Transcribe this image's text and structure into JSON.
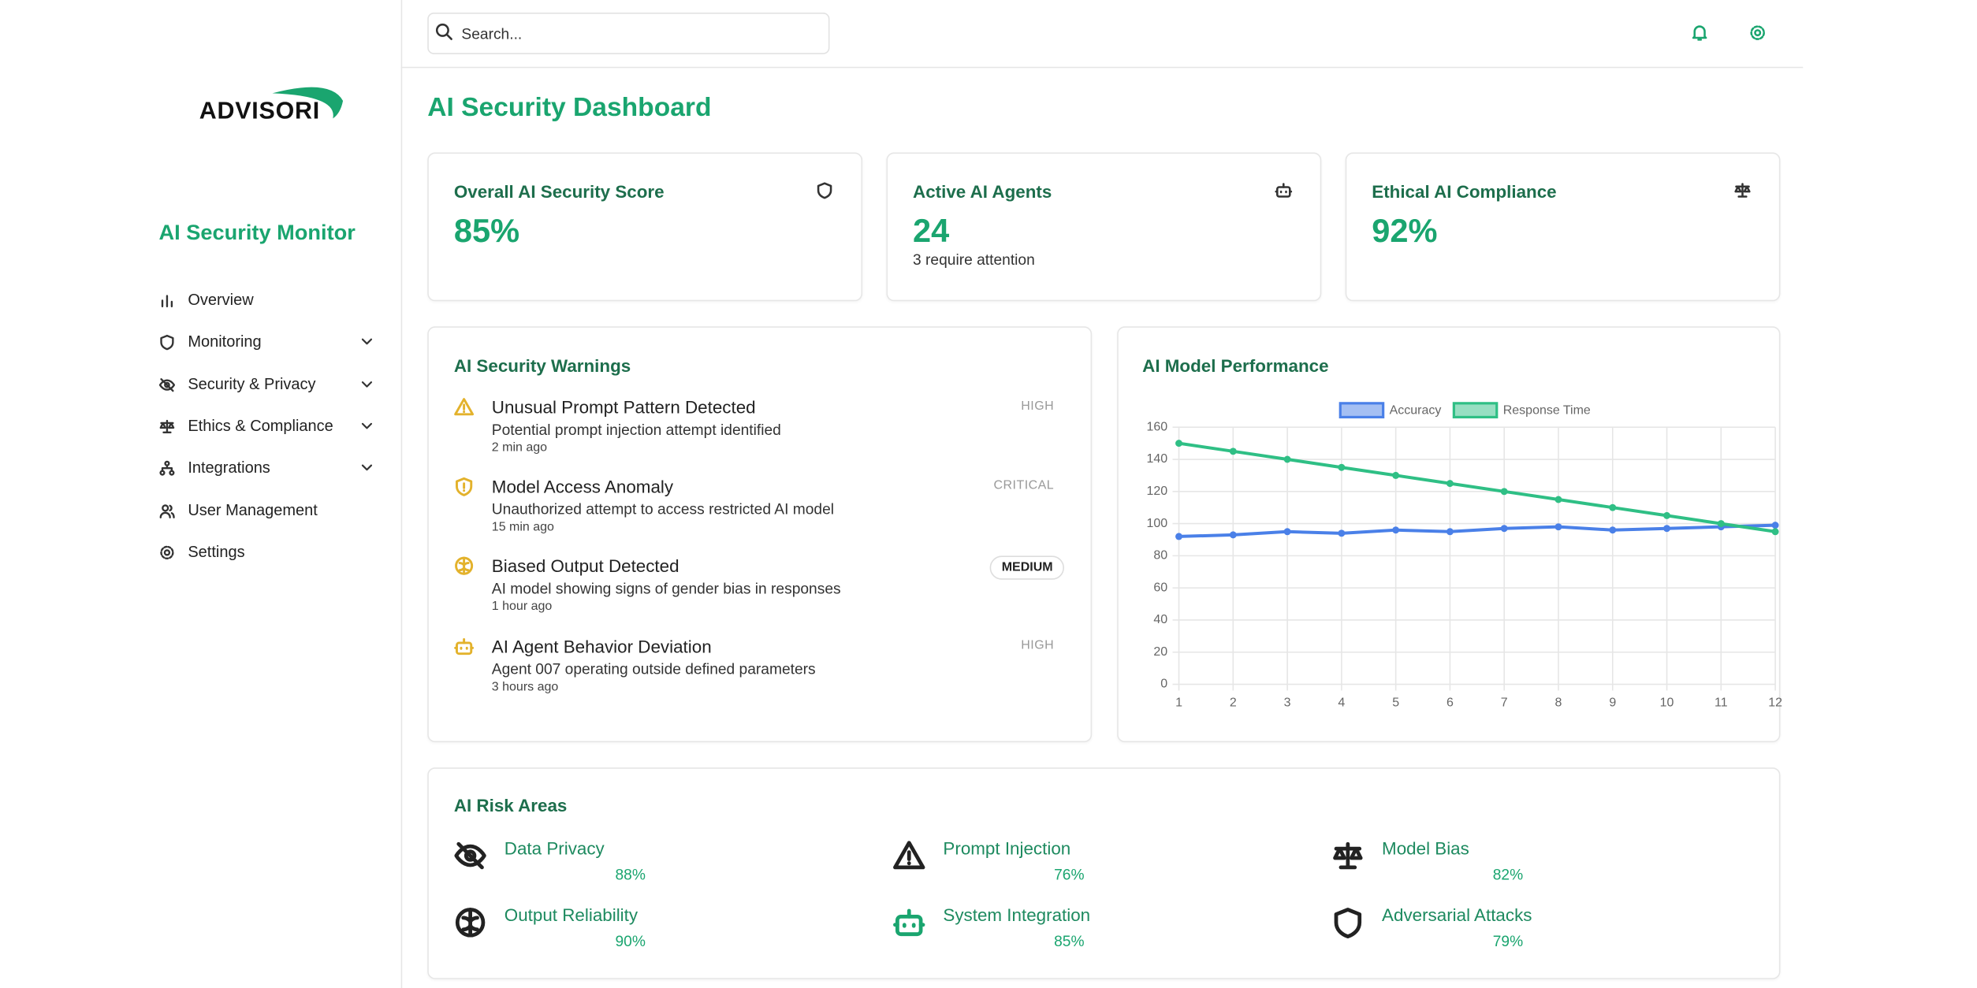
{
  "sidebar": {
    "logo": "ADVISORI",
    "title": "AI Security Monitor",
    "nav": [
      "Overview",
      "Monitoring",
      "Security & Privacy",
      "Ethics & Compliance",
      "Integrations",
      "User Management",
      "Settings"
    ]
  },
  "header": {
    "search": "Search..."
  },
  "page_title": "AI Security Dashboard",
  "cards": [
    {
      "title": "Overall AI Security Score",
      "value": "85%"
    },
    {
      "title": "Active AI Agents",
      "value": "24",
      "note": "3 require attention"
    },
    {
      "title": "Ethical AI Compliance",
      "value": "92%"
    }
  ],
  "warnings": {
    "title": "AI Security Warnings",
    "items": [
      {
        "title": "Unusual Prompt Pattern Detected",
        "description": "Potential prompt injection attempt identified",
        "time": "2 min ago",
        "level": "HIGH"
      },
      {
        "title": "Model Access Anomaly",
        "description": "Unauthorized attempt to access restricted AI model",
        "time": "15 min ago",
        "level": "CRITICAL"
      },
      {
        "title": "Biased Output Detected",
        "description": "AI model showing signs of gender bias in responses",
        "time": "1 hour ago",
        "level": "MEDIUM"
      },
      {
        "title": "AI Agent Behavior Deviation",
        "description": "Agent 007 operating outside defined parameters",
        "time": "3 hours ago",
        "level": "HIGH"
      }
    ]
  },
  "chart_data": {
    "type": "line",
    "title": "AI Model Performance",
    "x": [
      1,
      2,
      3,
      4,
      5,
      6,
      7,
      8,
      9,
      10,
      11,
      12
    ],
    "xlim": [
      1,
      12
    ],
    "xticks": [
      1,
      2,
      3,
      4,
      5,
      6,
      7,
      8,
      9,
      10,
      11,
      12
    ],
    "ylim": [
      0,
      160
    ],
    "yticks": [
      0,
      20,
      40,
      60,
      80,
      100,
      120,
      140,
      160
    ],
    "grid": true,
    "series": [
      {
        "name": "Accuracy",
        "color": "#4a80e8",
        "values": [
          92,
          93,
          95,
          94,
          96,
          95,
          97,
          98,
          96,
          97,
          98,
          99
        ]
      },
      {
        "name": "Response Time",
        "color": "#2fbf85",
        "values": [
          150,
          145,
          140,
          135,
          130,
          125,
          120,
          115,
          110,
          105,
          100,
          95
        ]
      }
    ]
  },
  "risk_areas": {
    "title": "AI Risk Areas",
    "items": [
      {
        "name": "Data Privacy",
        "value": "88%"
      },
      {
        "name": "Prompt Injection",
        "value": "76%"
      },
      {
        "name": "Model Bias",
        "value": "82%"
      },
      {
        "name": "Output Reliability",
        "value": "90%"
      },
      {
        "name": "System Integration",
        "value": "85%"
      },
      {
        "name": "Adversarial Attacks",
        "value": "79%"
      }
    ]
  }
}
